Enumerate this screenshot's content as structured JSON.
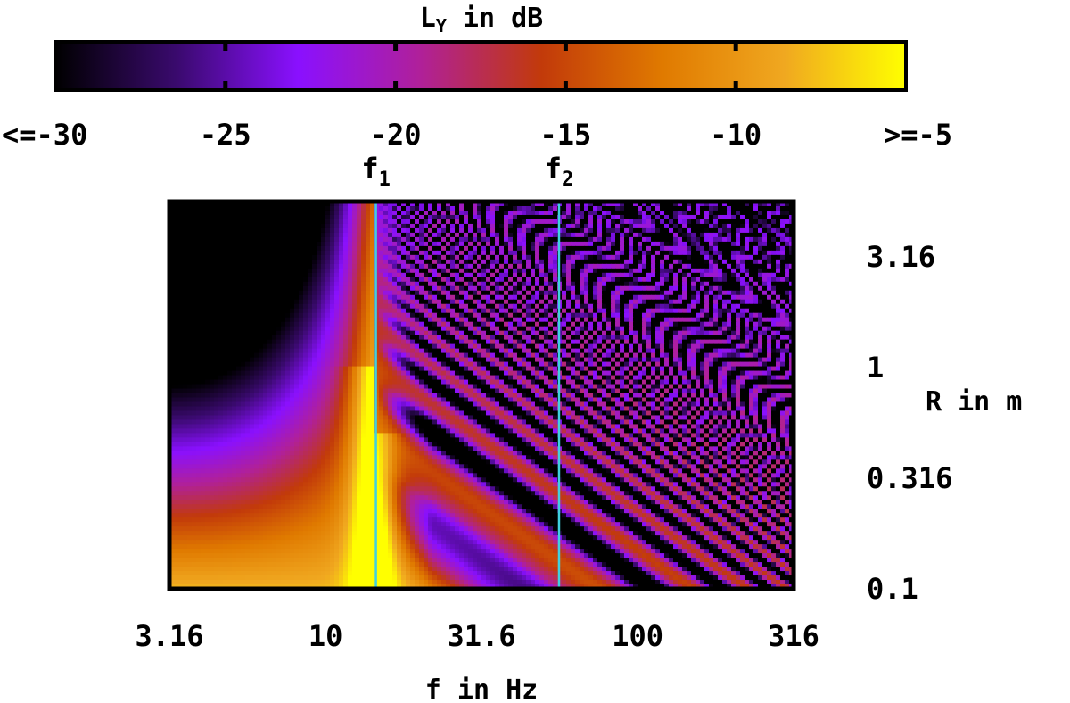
{
  "chart_data": {
    "type": "heatmap",
    "title": "",
    "colorbar": {
      "label_main": "L",
      "label_sub": "Y",
      "label_rest": " in dB",
      "tick_labels": [
        "<=-30",
        "-25",
        "-20",
        "-15",
        "-10",
        ">=-5"
      ],
      "tick_values": [
        -30,
        -25,
        -20,
        -15,
        -10,
        -5
      ],
      "range": [
        -30,
        -5
      ],
      "colormap": [
        "#000000",
        "#3a0a6e",
        "#8a10ff",
        "#b0209a",
        "#c23a0a",
        "#e07a00",
        "#f0a820",
        "#ffff00"
      ]
    },
    "xlabel": "f in Hz",
    "ylabel": "R in m",
    "x_scale": "log",
    "y_scale": "log",
    "xlim": [
      3.16,
      316
    ],
    "ylim": [
      0.1,
      5.62
    ],
    "x_ticks": [
      {
        "value": 3.16,
        "label": "3.16"
      },
      {
        "value": 10,
        "label": "10"
      },
      {
        "value": 31.6,
        "label": "31.6"
      },
      {
        "value": 100,
        "label": "100"
      },
      {
        "value": 316,
        "label": "316"
      }
    ],
    "y_ticks": [
      {
        "value": 0.1,
        "label": "0.1"
      },
      {
        "value": 0.316,
        "label": "0.316"
      },
      {
        "value": 1,
        "label": "1"
      },
      {
        "value": 3.16,
        "label": "3.16"
      }
    ],
    "markers": [
      {
        "name": "f",
        "sub": "1",
        "value": 14.5,
        "color": "#40d0e0"
      },
      {
        "name": "f",
        "sub": "2",
        "value": 56,
        "color": "#40d0e0"
      }
    ],
    "grid": false
  }
}
